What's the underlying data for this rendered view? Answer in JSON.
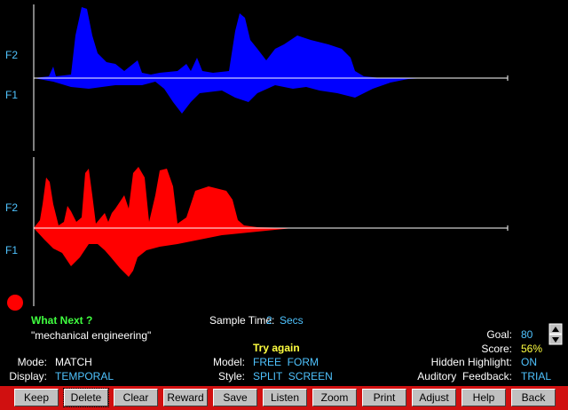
{
  "panels": [
    {
      "labels": [
        "F2",
        "F1"
      ]
    },
    {
      "labels": [
        "F2",
        "F1"
      ]
    }
  ],
  "prompt": {
    "title": "What Next ?",
    "phrase": "\"mechanical engineering\""
  },
  "sample_time": {
    "label": "Sample Time:",
    "value": "2",
    "unit": "Secs"
  },
  "goal": {
    "label": "Goal:",
    "value": "80"
  },
  "score": {
    "label": "Score:",
    "value": "56%"
  },
  "feedback": "Try again",
  "settings": [
    {
      "label": "Mode:",
      "value": "MATCH"
    },
    {
      "label": "Display:",
      "value": "TEMPORAL"
    },
    {
      "label": "Model:",
      "value": "FREE  FORM"
    },
    {
      "label": "Style:",
      "value": "SPLIT  SCREEN"
    },
    {
      "label": "Hidden Highlight:",
      "value": "ON"
    },
    {
      "label": "Auditory  Feedback:",
      "value": "TRIAL"
    }
  ],
  "buttons": [
    "Keep",
    "Delete",
    "Clear",
    "Reward",
    "Save",
    "Listen",
    "Zoom",
    "Print",
    "Adjust",
    "Help",
    "Back"
  ]
}
